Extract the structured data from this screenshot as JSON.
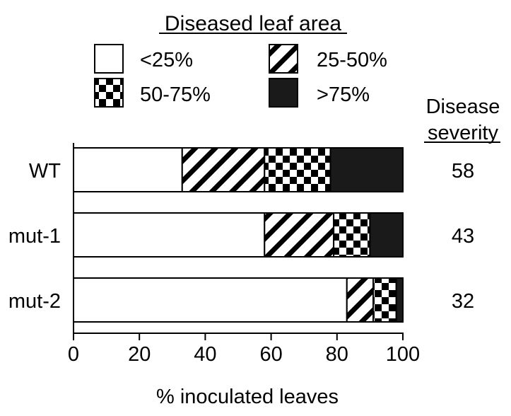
{
  "chart_data": {
    "type": "bar",
    "orientation": "horizontal",
    "stacked": true,
    "legend": {
      "title": "Diseased leaf area",
      "placement": "top",
      "entries": [
        {
          "label": "<25%",
          "pattern": "plain"
        },
        {
          "label": "25-50%",
          "pattern": "diagonal-stripes"
        },
        {
          "label": "50-75%",
          "pattern": "checkerboard"
        },
        {
          "label": ">75%",
          "pattern": "solid"
        }
      ]
    },
    "categories": [
      "WT",
      "mut-1",
      "mut-2"
    ],
    "series": [
      {
        "name": "<25%",
        "values": [
          33,
          58,
          83
        ]
      },
      {
        "name": "25-50%",
        "values": [
          25,
          21,
          8
        ]
      },
      {
        "name": "50-75%",
        "values": [
          20,
          11,
          7
        ]
      },
      {
        "name": ">75%",
        "values": [
          22,
          10,
          2
        ]
      }
    ],
    "xlabel": "% inoculated leaves",
    "xlim": [
      0,
      100
    ],
    "xticks": [
      0,
      20,
      40,
      60,
      80,
      100
    ],
    "grid": false,
    "severity": {
      "title_line1": "Disease",
      "title_line2": "severity",
      "values": [
        "58",
        "43",
        "32"
      ]
    },
    "colors": {
      "ink": "#000000",
      "fill": "#ffffff",
      "solid": "#1a1a1a"
    }
  }
}
